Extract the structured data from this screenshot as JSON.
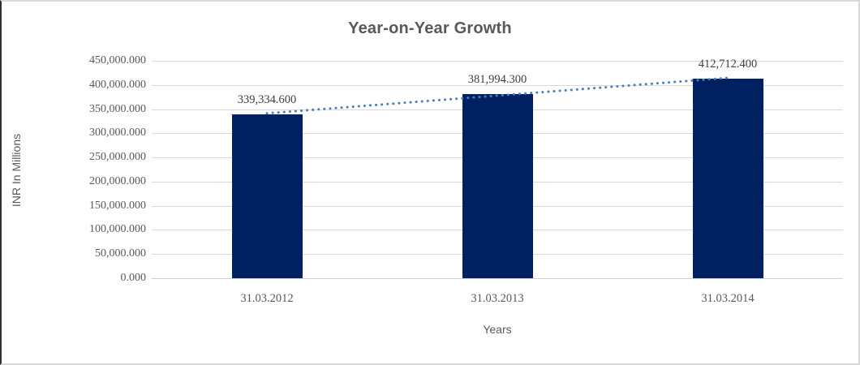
{
  "colors": {
    "bar": "#012061",
    "trendline": "#4a7ebf",
    "gridline": "#d9d9d9",
    "axis_text": "#595959",
    "data_label": "#404040",
    "title_text": "#595959"
  },
  "chart_data": {
    "type": "bar",
    "title": "Year-on-Year Growth",
    "xlabel": "Years",
    "ylabel": "INR In Millions",
    "categories": [
      "31.03.2012",
      "31.03.2013",
      "31.03.2014"
    ],
    "values": [
      339334.6,
      381994.3,
      412712.4
    ],
    "value_labels": [
      "339,334.600",
      "381,994.300",
      "412,712.400"
    ],
    "ylim": [
      0,
      450000
    ],
    "ytick_step": 50000,
    "ytick_labels": [
      "0.000",
      "50,000.000",
      "100,000.000",
      "150,000.000",
      "200,000.000",
      "250,000.000",
      "300,000.000",
      "350,000.000",
      "400,000.000",
      "450,000.000"
    ],
    "grid": true,
    "legend": "none",
    "trendline": {
      "style": "dotted",
      "start_value": 341325,
      "end_value": 414703
    }
  }
}
